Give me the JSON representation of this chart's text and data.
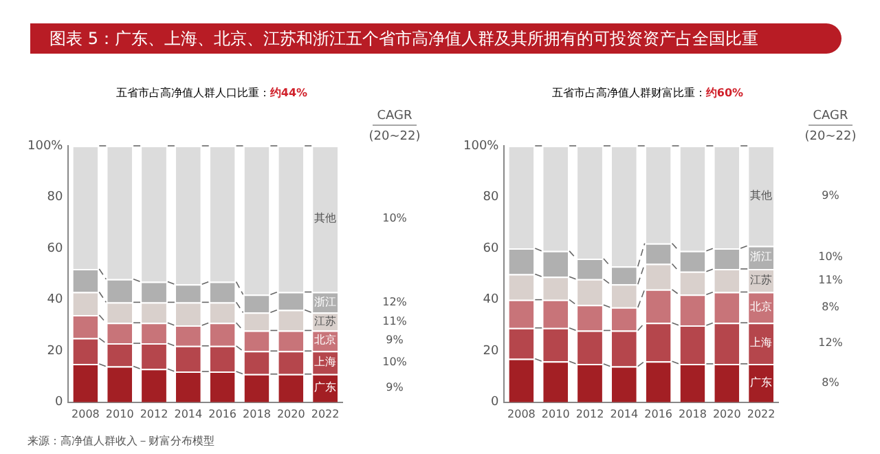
{
  "chart_data": [
    {
      "type": "bar",
      "title": "五省市占高净值人群人口比重：",
      "subtitle": "约44%",
      "stacked": true,
      "grid": false,
      "legend": false,
      "categories": [
        "2008",
        "2010",
        "2012",
        "2014",
        "2016",
        "2018",
        "2020",
        "2022"
      ],
      "ylim": [
        0,
        100
      ],
      "yticks": [
        0,
        20,
        40,
        60,
        80,
        {
          "value": 100,
          "label": "100%"
        }
      ],
      "series": [
        {
          "name": "广东",
          "color": "#a31f24",
          "values": [
            15,
            14,
            13,
            12,
            12,
            11,
            11,
            11
          ]
        },
        {
          "name": "上海",
          "color": "#b5464c",
          "values": [
            10,
            9,
            10,
            10,
            10,
            9,
            9,
            9
          ]
        },
        {
          "name": "北京",
          "color": "#c87479",
          "values": [
            9,
            8,
            8,
            8,
            9,
            8,
            8,
            8
          ]
        },
        {
          "name": "江苏",
          "color": "#d9d0cc",
          "values": [
            9,
            8,
            8,
            9,
            8,
            7,
            8,
            7
          ]
        },
        {
          "name": "浙江",
          "color": "#b0b0b0",
          "values": [
            9,
            9,
            8,
            7,
            8,
            7,
            7,
            8
          ]
        },
        {
          "name": "其他",
          "color": "#dcdcdc",
          "values": [
            48,
            52,
            53,
            54,
            53,
            58,
            57,
            57
          ]
        }
      ],
      "annotations": [
        "CAGR",
        "(20~22)",
        "9%",
        "10%",
        "9%",
        "11%",
        "12%",
        "10%",
        "图表 5：广东、上海、北京、江苏和浙江五个省市高净值人群及其所拥有的可投资资产占全国比重",
        "来源：高净值人群收入－财富分布模型"
      ]
    },
    {
      "type": "bar",
      "title": "五省市占高净值人群财富比重：",
      "subtitle": "约60%",
      "stacked": true,
      "grid": false,
      "legend": false,
      "categories": [
        "2008",
        "2010",
        "2012",
        "2014",
        "2016",
        "2018",
        "2020",
        "2022"
      ],
      "ylim": [
        0,
        100
      ],
      "yticks": [
        0,
        20,
        40,
        60,
        80,
        {
          "value": 100,
          "label": "100%"
        }
      ],
      "series": [
        {
          "name": "广东",
          "color": "#a31f24",
          "values": [
            17,
            16,
            15,
            14,
            16,
            15,
            15,
            15
          ]
        },
        {
          "name": "上海",
          "color": "#b5464c",
          "values": [
            12,
            13,
            13,
            14,
            15,
            15,
            16,
            16
          ]
        },
        {
          "name": "北京",
          "color": "#c87479",
          "values": [
            11,
            11,
            10,
            9,
            13,
            12,
            12,
            12
          ]
        },
        {
          "name": "江苏",
          "color": "#d9d0cc",
          "values": [
            10,
            9,
            10,
            9,
            10,
            9,
            9,
            9
          ]
        },
        {
          "name": "浙江",
          "color": "#b0b0b0",
          "values": [
            10,
            10,
            8,
            7,
            8,
            8,
            8,
            9
          ]
        },
        {
          "name": "其他",
          "color": "#dcdcdc",
          "values": [
            40,
            41,
            44,
            47,
            38,
            41,
            40,
            39
          ]
        }
      ],
      "annotations": [
        "CAGR",
        "(20~22)",
        "8%",
        "12%",
        "8%",
        "11%",
        "10%",
        "9%"
      ]
    }
  ]
}
